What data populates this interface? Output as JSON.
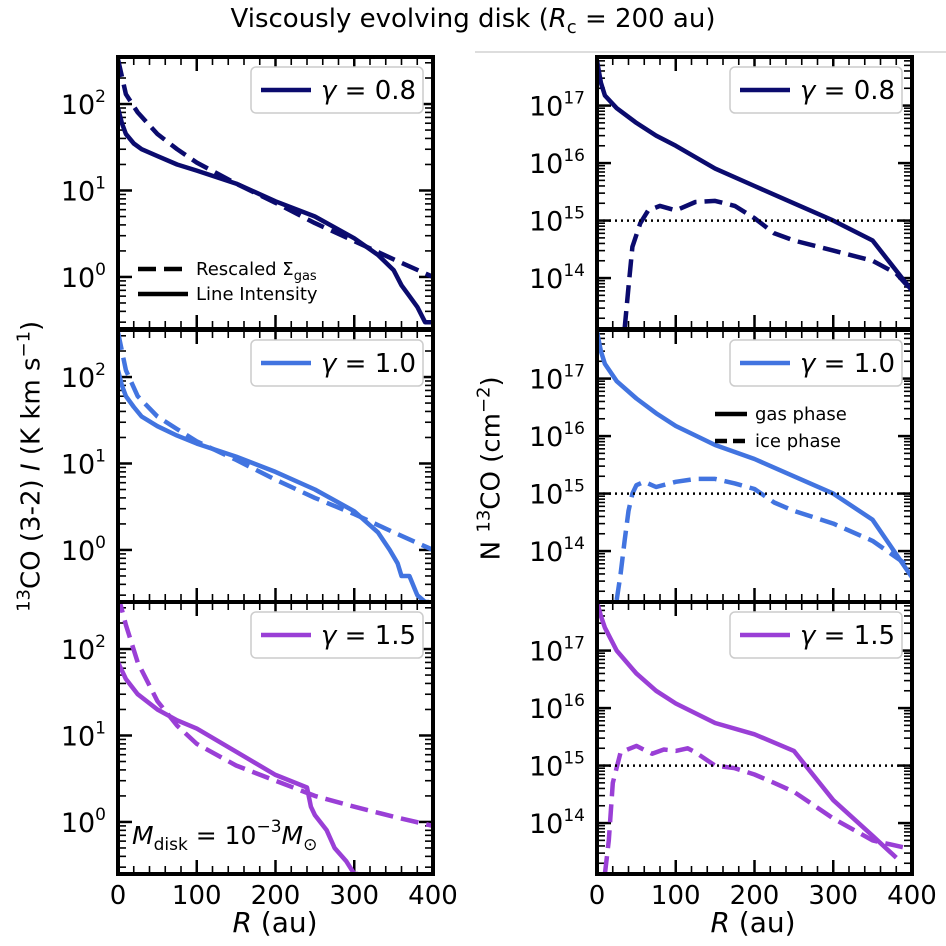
{
  "figure": {
    "title": "Viscously evolving disk (R_c = 200 au)",
    "title_parts": {
      "pre": "Viscously evolving disk (",
      "var": "R",
      "sub": "c",
      "post": " = 200 au)"
    },
    "left_ylabel": {
      "pre": "13",
      "mid": "CO (3-2) ",
      "var": "I",
      "post": " (K km s",
      "sup": "−1",
      "end": ")"
    },
    "right_ylabel": {
      "pre": "N ",
      "sup1": "13",
      "mid": "CO (cm",
      "sup2": "−2",
      "end": ")"
    },
    "xlabel": {
      "var": "R",
      "post": " (au)"
    },
    "colors": {
      "gamma_0.8": "#0b0b6e",
      "gamma_1.0": "#4274e0",
      "gamma_1.5": "#9a3fd6"
    }
  },
  "legends": {
    "rescaled": "Rescaled Σ",
    "rescaled_sub": "gas",
    "line_intensity": "Line Intensity",
    "gas_phase": "gas phase",
    "ice_phase": "ice phase",
    "mdisk_pre": "M",
    "mdisk_sub": "disk",
    "mdisk_mid": " = 10",
    "mdisk_sup": "−3",
    "mdisk_post": "M",
    "mdisk_sun": "⊙"
  },
  "chart_data": [
    {
      "type": "line",
      "panel": "left-top",
      "gamma_label": "γ = 0.8",
      "xlim": [
        0,
        400
      ],
      "ylim": [
        0.25,
        350
      ],
      "yscale": "log",
      "x_ticks": [],
      "y_ticks": [
        "10^0",
        "10^1",
        "10^2"
      ],
      "series": [
        {
          "name": "Rescaled Σgas",
          "style": "dashed",
          "x": [
            0,
            10,
            25,
            50,
            75,
            100,
            150,
            200,
            250,
            300,
            350,
            400
          ],
          "y": [
            330,
            130,
            80,
            45,
            30,
            21,
            12,
            7.2,
            4.2,
            2.6,
            1.6,
            1.0
          ]
        },
        {
          "name": "Line Intensity",
          "style": "solid",
          "x": [
            0,
            5,
            10,
            20,
            30,
            50,
            75,
            100,
            150,
            200,
            250,
            300,
            330,
            350,
            360,
            370,
            380,
            390,
            400
          ],
          "y": [
            90,
            60,
            45,
            35,
            30,
            25,
            20,
            17,
            12,
            7.5,
            5,
            2.8,
            1.8,
            1.2,
            0.8,
            0.6,
            0.45,
            0.3,
            0.3
          ]
        }
      ]
    },
    {
      "type": "line",
      "panel": "left-middle",
      "gamma_label": "γ = 1.0",
      "xlim": [
        0,
        400
      ],
      "ylim": [
        0.25,
        350
      ],
      "yscale": "log",
      "x_ticks": [],
      "y_ticks": [
        "10^0",
        "10^1",
        "10^2"
      ],
      "series": [
        {
          "name": "Rescaled Σgas",
          "style": "dashed",
          "x": [
            0,
            10,
            25,
            50,
            75,
            100,
            150,
            200,
            250,
            300,
            350,
            400
          ],
          "y": [
            330,
            120,
            60,
            35,
            25,
            18,
            11,
            6.5,
            4,
            2.6,
            1.6,
            1.0
          ]
        },
        {
          "name": "Line Intensity",
          "style": "solid",
          "x": [
            0,
            5,
            10,
            20,
            30,
            50,
            75,
            100,
            150,
            200,
            250,
            300,
            330,
            345,
            355,
            360,
            370,
            380,
            390,
            395
          ],
          "y": [
            120,
            80,
            60,
            45,
            35,
            27,
            21,
            17,
            12,
            8,
            5,
            2.8,
            1.6,
            1.0,
            0.7,
            0.5,
            0.5,
            0.3,
            0.25,
            0.25
          ]
        }
      ]
    },
    {
      "type": "line",
      "panel": "left-bottom",
      "gamma_label": "γ = 1.5",
      "xlim": [
        0,
        400
      ],
      "ylim": [
        0.25,
        350
      ],
      "yscale": "log",
      "x_ticks": [
        "0",
        "100",
        "200",
        "300",
        "400"
      ],
      "y_ticks": [
        "10^0",
        "10^1",
        "10^2"
      ],
      "series": [
        {
          "name": "Rescaled Σgas",
          "style": "dashed",
          "x": [
            0,
            10,
            25,
            50,
            75,
            100,
            150,
            200,
            250,
            300,
            350,
            400
          ],
          "y": [
            420,
            190,
            70,
            25,
            13,
            8,
            4.5,
            3,
            2,
            1.5,
            1.15,
            0.9
          ]
        },
        {
          "name": "Line Intensity",
          "style": "solid",
          "x": [
            0,
            10,
            25,
            50,
            75,
            100,
            150,
            200,
            240,
            245,
            250,
            265,
            275,
            290,
            300,
            305
          ],
          "y": [
            70,
            45,
            30,
            20,
            15,
            12,
            6.5,
            3.5,
            2.5,
            1.5,
            1.2,
            0.8,
            0.5,
            0.35,
            0.25,
            0.25
          ]
        }
      ],
      "annotation": "M_disk = 10^-3 M_sun"
    },
    {
      "type": "line",
      "panel": "right-top",
      "gamma_label": "γ = 0.8",
      "xlim": [
        0,
        400
      ],
      "ylim": [
        13000000000000.0,
        7e+17
      ],
      "yscale": "log",
      "x_ticks": [],
      "y_ticks": [
        "10^14",
        "10^15",
        "10^16",
        "10^17"
      ],
      "series": [
        {
          "name": "gas phase",
          "style": "solid",
          "x": [
            0,
            5,
            10,
            25,
            50,
            75,
            100,
            150,
            200,
            250,
            300,
            350,
            400
          ],
          "y": [
            6e+17,
            2.5e+17,
            1.5e+17,
            9e+16,
            5e+16,
            3e+16,
            2e+16,
            8000000000000000.0,
            4000000000000000.0,
            2000000000000000.0,
            1000000000000000.0,
            450000000000000.0,
            60000000000000.0
          ]
        },
        {
          "name": "ice phase",
          "style": "dashed",
          "x": [
            35,
            40,
            45,
            55,
            65,
            80,
            100,
            125,
            150,
            175,
            200,
            225,
            250,
            300,
            350,
            380,
            400
          ],
          "y": [
            13000000000000.0,
            70000000000000.0,
            350000000000000.0,
            900000000000000.0,
            1500000000000000.0,
            1800000000000000.0,
            1500000000000000.0,
            2100000000000000.0,
            2200000000000000.0,
            1800000000000000.0,
            1100000000000000.0,
            600000000000000.0,
            450000000000000.0,
            300000000000000.0,
            200000000000000.0,
            120000000000000.0,
            60000000000000.0
          ]
        },
        {
          "name": "threshold",
          "style": "dotted",
          "x": [
            0,
            400
          ],
          "y": [
            1000000000000000.0,
            1000000000000000.0
          ]
        }
      ]
    },
    {
      "type": "line",
      "panel": "right-middle",
      "gamma_label": "γ = 1.0",
      "xlim": [
        0,
        400
      ],
      "ylim": [
        13000000000000.0,
        7e+17
      ],
      "yscale": "log",
      "x_ticks": [],
      "y_ticks": [
        "10^14",
        "10^15",
        "10^16",
        "10^17"
      ],
      "series": [
        {
          "name": "gas phase",
          "style": "solid",
          "x": [
            0,
            5,
            10,
            25,
            50,
            75,
            100,
            150,
            200,
            250,
            300,
            350,
            400
          ],
          "y": [
            6.5e+17,
            3e+17,
            1.8e+17,
            9e+16,
            4.5e+16,
            2.5e+16,
            1.5e+16,
            7000000000000000.0,
            4000000000000000.0,
            2000000000000000.0,
            1000000000000000.0,
            350000000000000.0,
            35000000000000.0
          ]
        },
        {
          "name": "ice phase",
          "style": "dashed",
          "x": [
            25,
            30,
            35,
            40,
            45,
            50,
            60,
            75,
            100,
            125,
            150,
            175,
            200,
            225,
            250,
            300,
            350,
            400
          ],
          "y": [
            14000000000000.0,
            40000000000000.0,
            150000000000000.0,
            500000000000000.0,
            1000000000000000.0,
            1400000000000000.0,
            1600000000000000.0,
            1300000000000000.0,
            1600000000000000.0,
            1800000000000000.0,
            1800000000000000.0,
            1500000000000000.0,
            1200000000000000.0,
            700000000000000.0,
            500000000000000.0,
            300000000000000.0,
            150000000000000.0,
            50000000000000.0
          ]
        },
        {
          "name": "threshold",
          "style": "dotted",
          "x": [
            0,
            400
          ],
          "y": [
            1000000000000000.0,
            1000000000000000.0
          ]
        }
      ]
    },
    {
      "type": "line",
      "panel": "right-bottom",
      "gamma_label": "γ = 1.5",
      "xlim": [
        0,
        400
      ],
      "ylim": [
        13000000000000.0,
        7e+17
      ],
      "yscale": "log",
      "x_ticks": [
        "0",
        "100",
        "200",
        "300",
        "400"
      ],
      "y_ticks": [
        "10^14",
        "10^15",
        "10^16",
        "10^17"
      ],
      "series": [
        {
          "name": "gas phase",
          "style": "solid",
          "x": [
            0,
            5,
            10,
            25,
            50,
            75,
            100,
            150,
            200,
            250,
            300,
            350,
            380
          ],
          "y": [
            7e+17,
            4e+17,
            2.5e+17,
            1e+17,
            4e+16,
            2e+16,
            1.2e+16,
            5500000000000000.0,
            3500000000000000.0,
            1800000000000000.0,
            250000000000000.0,
            60000000000000.0,
            25000000000000.0
          ]
        },
        {
          "name": "ice phase",
          "style": "dashed",
          "x": [
            10,
            15,
            20,
            30,
            50,
            70,
            85,
            100,
            115,
            125,
            150,
            175,
            200,
            225,
            250,
            300,
            350,
            400
          ],
          "y": [
            13000000000000.0,
            50000000000000.0,
            500000000000000.0,
            1700000000000000.0,
            2200000000000000.0,
            1600000000000000.0,
            1900000000000000.0,
            1800000000000000.0,
            2000000000000000.0,
            1700000000000000.0,
            1000000000000000.0,
            900000000000000.0,
            700000000000000.0,
            500000000000000.0,
            350000000000000.0,
            120000000000000.0,
            50000000000000.0,
            35000000000000.0
          ]
        },
        {
          "name": "threshold",
          "style": "dotted",
          "x": [
            0,
            400
          ],
          "y": [
            1000000000000000.0,
            1000000000000000.0
          ]
        }
      ]
    }
  ]
}
